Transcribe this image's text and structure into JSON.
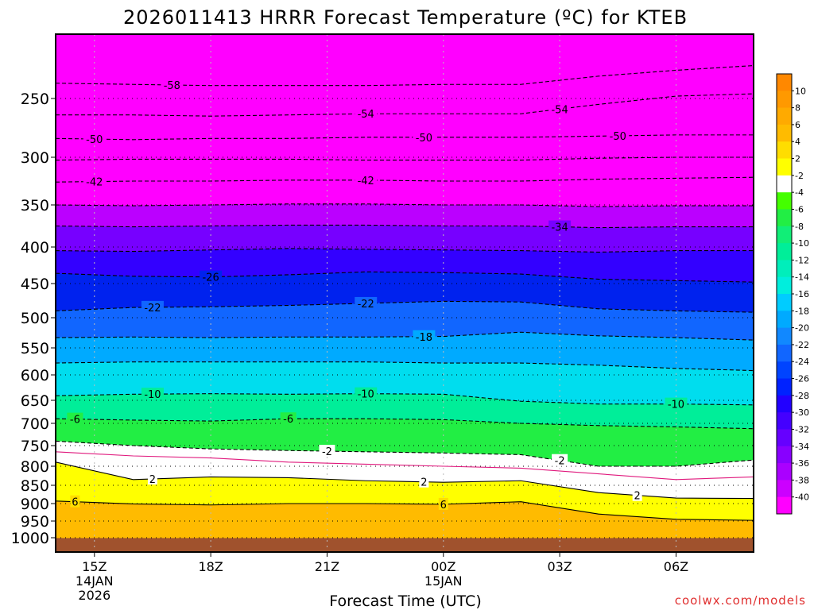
{
  "chart_data": {
    "type": "contourf",
    "title": "2026011413 HRRR Forecast Temperature (ºC) for KTEB",
    "xlabel": "Forecast Time (UTC)",
    "ylabel": "",
    "credit": "coolwx.com/models",
    "x_ticks": [
      {
        "label": "15Z",
        "sub": [
          "14JAN",
          "2026"
        ],
        "hour": 1
      },
      {
        "label": "18Z",
        "sub": [],
        "hour": 4
      },
      {
        "label": "21Z",
        "sub": [],
        "hour": 7
      },
      {
        "label": "00Z",
        "sub": [
          "15JAN"
        ],
        "hour": 10
      },
      {
        "label": "03Z",
        "sub": [],
        "hour": 13
      },
      {
        "label": "06Z",
        "sub": [],
        "hour": 16
      }
    ],
    "xlim_hours": [
      0,
      18
    ],
    "y_ticks": [
      "250",
      "300",
      "350",
      "400",
      "450",
      "500",
      "550",
      "600",
      "650",
      "700",
      "750",
      "800",
      "850",
      "900",
      "950",
      "1000"
    ],
    "y_levels": [
      250,
      300,
      350,
      400,
      450,
      500,
      550,
      600,
      650,
      700,
      750,
      800,
      850,
      900,
      950,
      1000
    ],
    "ylim_hpa": [
      200,
      1025
    ],
    "colorbar": {
      "labels": [
        "10",
        "8",
        "6",
        "4",
        "2",
        "-2",
        "-4",
        "-6",
        "-8",
        "-10",
        "-12",
        "-14",
        "-16",
        "-18",
        "-20",
        "-22",
        "-24",
        "-26",
        "-28",
        "-30",
        "-32",
        "-34",
        "-36",
        "-38",
        "-40"
      ],
      "colors": [
        "#ff8800",
        "#ff9900",
        "#ffaa00",
        "#ffbb00",
        "#ffdd00",
        "#ffff00",
        "#ffffff",
        "#44ff00",
        "#22ee44",
        "#11ee77",
        "#00ee99",
        "#00eebb",
        "#00eedd",
        "#00ccff",
        "#00aaff",
        "#1188ff",
        "#1166ff",
        "#0044ff",
        "#0022ff",
        "#2200ff",
        "#4400ff",
        "#6600ff",
        "#8800ff",
        "#aa00ff",
        "#cc00ff",
        "#ff00ff"
      ]
    },
    "band_colors": [
      {
        "lo": -60,
        "hi": -40,
        "color": "#ff00ff"
      },
      {
        "lo": -40,
        "hi": -38,
        "color": "#dd00ff"
      },
      {
        "lo": -38,
        "hi": -36,
        "color": "#bb00ff"
      },
      {
        "lo": -36,
        "hi": -34,
        "color": "#9900ff"
      },
      {
        "lo": -34,
        "hi": -32,
        "color": "#7700ff"
      },
      {
        "lo": -32,
        "hi": -30,
        "color": "#5500ff"
      },
      {
        "lo": -30,
        "hi": -28,
        "color": "#3300ff"
      },
      {
        "lo": -28,
        "hi": -26,
        "color": "#1100ff"
      },
      {
        "lo": -26,
        "hi": -24,
        "color": "#0022ee"
      },
      {
        "lo": -24,
        "hi": -22,
        "color": "#0044ff"
      },
      {
        "lo": -22,
        "hi": -20,
        "color": "#1166ff"
      },
      {
        "lo": -20,
        "hi": -18,
        "color": "#1188ff"
      },
      {
        "lo": -18,
        "hi": -16,
        "color": "#00aaff"
      },
      {
        "lo": -16,
        "hi": -14,
        "color": "#00ccff"
      },
      {
        "lo": -14,
        "hi": -12,
        "color": "#00ddee"
      },
      {
        "lo": -12,
        "hi": -10,
        "color": "#00eebb"
      },
      {
        "lo": -10,
        "hi": -8,
        "color": "#00ee99"
      },
      {
        "lo": -8,
        "hi": -6,
        "color": "#11ee66"
      },
      {
        "lo": -6,
        "hi": -4,
        "color": "#22ee44"
      },
      {
        "lo": -4,
        "hi": -2,
        "color": "#44ff00"
      },
      {
        "lo": -2,
        "hi": 2,
        "color": "#ffffff"
      },
      {
        "lo": 2,
        "hi": 4,
        "color": "#ffff00"
      },
      {
        "lo": 4,
        "hi": 6,
        "color": "#ffdd00"
      },
      {
        "lo": 6,
        "hi": 8,
        "color": "#ffbb00"
      },
      {
        "lo": 8,
        "hi": 10,
        "color": "#ffaa00"
      },
      {
        "lo": 10,
        "hi": 20,
        "color": "#ff9900"
      }
    ],
    "ground_color": "#a0522d",
    "isotherms": [
      {
        "temp": -58,
        "pressure": [
          237,
          238,
          239,
          239,
          239,
          238,
          238,
          231,
          226,
          222
        ],
        "labels": [
          {
            "hour": 3.0,
            "text": "-58"
          }
        ]
      },
      {
        "temp": -54,
        "pressure": [
          264,
          264,
          265,
          264,
          263,
          263,
          263,
          255,
          248,
          246
        ],
        "labels": [
          {
            "hour": 8.0,
            "text": "-54"
          },
          {
            "hour": 13.0,
            "text": "-54"
          }
        ]
      },
      {
        "temp": -50,
        "pressure": [
          284,
          285,
          284,
          284,
          283,
          283,
          283,
          282,
          281,
          281
        ],
        "labels": [
          {
            "hour": 1.0,
            "text": "-50"
          },
          {
            "hour": 9.5,
            "text": "-50"
          },
          {
            "hour": 14.5,
            "text": "-50"
          }
        ]
      },
      {
        "temp": -46,
        "pressure": [
          303,
          302,
          302,
          302,
          303,
          303,
          303,
          301,
          300,
          300
        ]
      },
      {
        "temp": -42,
        "pressure": [
          326,
          325,
          325,
          324,
          324,
          325,
          325,
          323,
          322,
          321
        ],
        "labels": [
          {
            "hour": 1.0,
            "text": "-42"
          },
          {
            "hour": 8.0,
            "text": "-42"
          }
        ]
      },
      {
        "temp": -38,
        "pressure": [
          350,
          351,
          350,
          349,
          349,
          350,
          350,
          352,
          351,
          351
        ]
      },
      {
        "temp": -34,
        "pressure": [
          375,
          376,
          375,
          374,
          374,
          375,
          375,
          377,
          376,
          376
        ],
        "labels": [
          {
            "hour": 13.0,
            "text": "-34"
          }
        ]
      },
      {
        "temp": -30,
        "pressure": [
          405,
          406,
          404,
          402,
          403,
          404,
          405,
          407,
          405,
          405
        ]
      },
      {
        "temp": -26,
        "pressure": [
          436,
          440,
          441,
          438,
          434,
          435,
          437,
          444,
          446,
          448
        ],
        "labels": [
          {
            "hour": 4.0,
            "text": "-26"
          }
        ]
      },
      {
        "temp": -22,
        "pressure": [
          490,
          485,
          484,
          482,
          479,
          476,
          477,
          487,
          490,
          492
        ],
        "labels": [
          {
            "hour": 2.5,
            "text": "-22"
          },
          {
            "hour": 8.0,
            "text": "-22"
          }
        ]
      },
      {
        "temp": -18,
        "pressure": [
          533,
          532,
          533,
          532,
          532,
          531,
          524,
          530,
          533,
          537
        ],
        "labels": [
          {
            "hour": 9.5,
            "text": "-18"
          }
        ]
      },
      {
        "temp": -14,
        "pressure": [
          578,
          576,
          576,
          576,
          576,
          578,
          578,
          582,
          588,
          592
        ]
      },
      {
        "temp": -10,
        "pressure": [
          641,
          638,
          637,
          638,
          637,
          638,
          652,
          658,
          658,
          660
        ],
        "labels": [
          {
            "hour": 2.5,
            "text": "-10"
          },
          {
            "hour": 8.0,
            "text": "-10"
          },
          {
            "hour": 16.0,
            "text": "-10"
          }
        ]
      },
      {
        "temp": -6,
        "pressure": [
          690,
          693,
          695,
          690,
          690,
          692,
          700,
          705,
          708,
          712
        ],
        "labels": [
          {
            "hour": 0.5,
            "text": "-6"
          },
          {
            "hour": 6.0,
            "text": "-6"
          }
        ]
      },
      {
        "temp": -2,
        "pressure": [
          740,
          750,
          758,
          762,
          765,
          768,
          772,
          800,
          800,
          785
        ],
        "labels": [
          {
            "hour": 7.0,
            "text": "-2"
          },
          {
            "hour": 13.0,
            "text": "-2"
          }
        ]
      },
      {
        "temp": 2,
        "pressure": [
          790,
          835,
          828,
          830,
          838,
          842,
          838,
          870,
          885,
          886
        ],
        "labels": [
          {
            "hour": 2.5,
            "text": "2"
          },
          {
            "hour": 9.5,
            "text": "2"
          },
          {
            "hour": 15.0,
            "text": "2"
          }
        ]
      },
      {
        "temp": 6,
        "pressure": [
          893,
          901,
          904,
          900,
          900,
          902,
          895,
          930,
          945,
          948
        ],
        "labels": [
          {
            "hour": 0.5,
            "text": "6"
          },
          {
            "hour": 10.0,
            "text": "6"
          }
        ]
      }
    ],
    "freezing_line": {
      "temp": 0,
      "pressure": [
        765,
        775,
        780,
        790,
        795,
        800,
        805,
        820,
        835,
        828
      ]
    }
  }
}
